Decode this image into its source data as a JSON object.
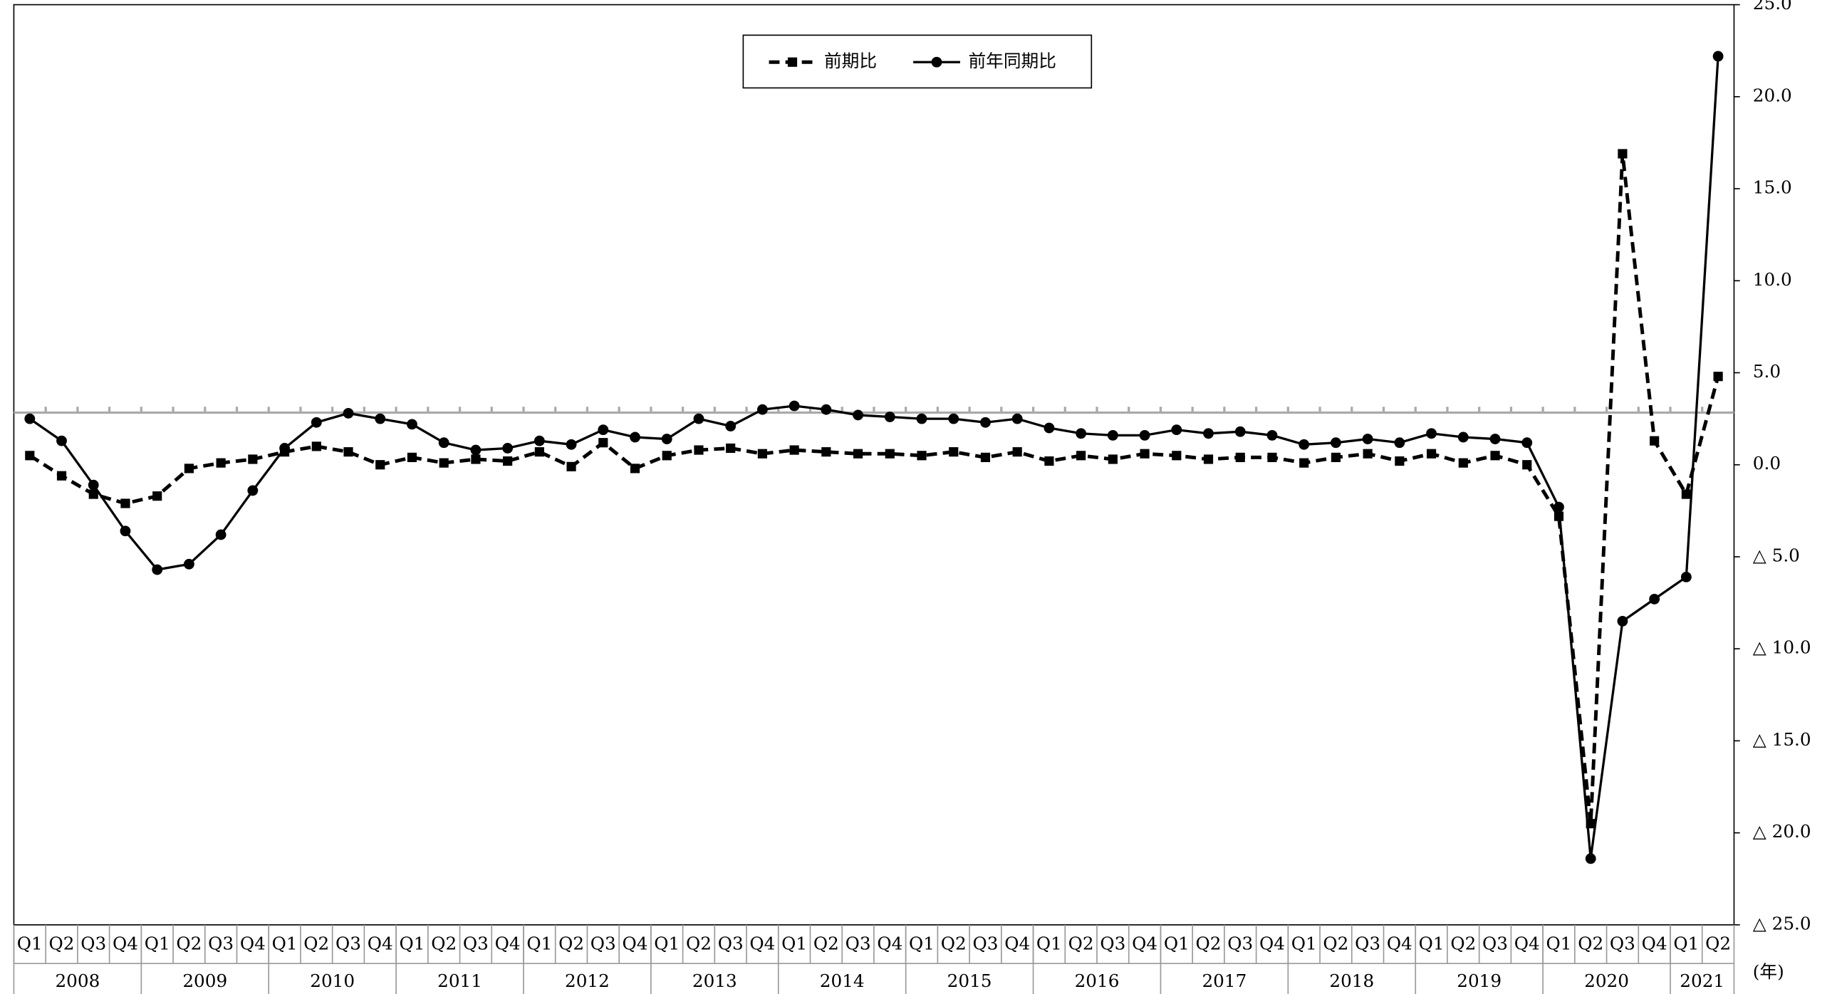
{
  "chart_data": {
    "type": "line",
    "categories": [
      {
        "year": "2008",
        "quarter": "Q1"
      },
      {
        "year": "2008",
        "quarter": "Q2"
      },
      {
        "year": "2008",
        "quarter": "Q3"
      },
      {
        "year": "2008",
        "quarter": "Q4"
      },
      {
        "year": "2009",
        "quarter": "Q1"
      },
      {
        "year": "2009",
        "quarter": "Q2"
      },
      {
        "year": "2009",
        "quarter": "Q3"
      },
      {
        "year": "2009",
        "quarter": "Q4"
      },
      {
        "year": "2010",
        "quarter": "Q1"
      },
      {
        "year": "2010",
        "quarter": "Q2"
      },
      {
        "year": "2010",
        "quarter": "Q3"
      },
      {
        "year": "2010",
        "quarter": "Q4"
      },
      {
        "year": "2011",
        "quarter": "Q1"
      },
      {
        "year": "2011",
        "quarter": "Q2"
      },
      {
        "year": "2011",
        "quarter": "Q3"
      },
      {
        "year": "2011",
        "quarter": "Q4"
      },
      {
        "year": "2012",
        "quarter": "Q1"
      },
      {
        "year": "2012",
        "quarter": "Q2"
      },
      {
        "year": "2012",
        "quarter": "Q3"
      },
      {
        "year": "2012",
        "quarter": "Q4"
      },
      {
        "year": "2013",
        "quarter": "Q1"
      },
      {
        "year": "2013",
        "quarter": "Q2"
      },
      {
        "year": "2013",
        "quarter": "Q3"
      },
      {
        "year": "2013",
        "quarter": "Q4"
      },
      {
        "year": "2014",
        "quarter": "Q1"
      },
      {
        "year": "2014",
        "quarter": "Q2"
      },
      {
        "year": "2014",
        "quarter": "Q3"
      },
      {
        "year": "2014",
        "quarter": "Q4"
      },
      {
        "year": "2015",
        "quarter": "Q1"
      },
      {
        "year": "2015",
        "quarter": "Q2"
      },
      {
        "year": "2015",
        "quarter": "Q3"
      },
      {
        "year": "2015",
        "quarter": "Q4"
      },
      {
        "year": "2016",
        "quarter": "Q1"
      },
      {
        "year": "2016",
        "quarter": "Q2"
      },
      {
        "year": "2016",
        "quarter": "Q3"
      },
      {
        "year": "2016",
        "quarter": "Q4"
      },
      {
        "year": "2017",
        "quarter": "Q1"
      },
      {
        "year": "2017",
        "quarter": "Q2"
      },
      {
        "year": "2017",
        "quarter": "Q3"
      },
      {
        "year": "2017",
        "quarter": "Q4"
      },
      {
        "year": "2018",
        "quarter": "Q1"
      },
      {
        "year": "2018",
        "quarter": "Q2"
      },
      {
        "year": "2018",
        "quarter": "Q3"
      },
      {
        "year": "2018",
        "quarter": "Q4"
      },
      {
        "year": "2019",
        "quarter": "Q1"
      },
      {
        "year": "2019",
        "quarter": "Q2"
      },
      {
        "year": "2019",
        "quarter": "Q3"
      },
      {
        "year": "2019",
        "quarter": "Q4"
      },
      {
        "year": "2020",
        "quarter": "Q1"
      },
      {
        "year": "2020",
        "quarter": "Q2"
      },
      {
        "year": "2020",
        "quarter": "Q3"
      },
      {
        "year": "2020",
        "quarter": "Q4"
      },
      {
        "year": "2021",
        "quarter": "Q1"
      },
      {
        "year": "2021",
        "quarter": "Q2"
      }
    ],
    "x_label": "(年)",
    "series": [
      {
        "name": "前期比",
        "color": "#000000",
        "dash": true,
        "marker": "square",
        "values": [
          0.5,
          -0.6,
          -1.6,
          -2.1,
          -1.7,
          -0.2,
          0.1,
          0.3,
          0.7,
          1.0,
          0.7,
          0.0,
          0.4,
          0.1,
          0.3,
          0.2,
          0.7,
          -0.1,
          1.2,
          -0.2,
          0.5,
          0.8,
          0.9,
          0.6,
          0.8,
          0.7,
          0.6,
          0.6,
          0.5,
          0.7,
          0.4,
          0.7,
          0.2,
          0.5,
          0.3,
          0.6,
          0.5,
          0.3,
          0.4,
          0.4,
          0.1,
          0.4,
          0.6,
          0.2,
          0.6,
          0.1,
          0.5,
          0.0,
          -2.8,
          -19.5,
          16.9,
          1.3,
          -1.6,
          4.8
        ]
      },
      {
        "name": "前年同期比",
        "color": "#000000",
        "dash": false,
        "marker": "circle",
        "values": [
          2.5,
          1.3,
          -1.1,
          -3.6,
          -5.7,
          -5.4,
          -3.8,
          -1.4,
          0.9,
          2.3,
          2.8,
          2.5,
          2.2,
          1.2,
          0.8,
          0.9,
          1.3,
          1.1,
          1.9,
          1.5,
          1.4,
          2.5,
          2.1,
          3.0,
          3.2,
          3.0,
          2.7,
          2.6,
          2.5,
          2.5,
          2.3,
          2.5,
          2.0,
          1.7,
          1.6,
          1.6,
          1.9,
          1.7,
          1.8,
          1.6,
          1.1,
          1.2,
          1.4,
          1.2,
          1.7,
          1.5,
          1.4,
          1.2,
          -2.3,
          -21.4,
          -8.5,
          -7.3,
          -6.1,
          22.2
        ]
      }
    ],
    "ylim": [
      -25,
      25
    ],
    "yticks": [
      {
        "value": 25,
        "label": "25.0"
      },
      {
        "value": 20,
        "label": "20.0"
      },
      {
        "value": 15,
        "label": "15.0"
      },
      {
        "value": 10,
        "label": "10.0"
      },
      {
        "value": 5,
        "label": "5.0"
      },
      {
        "value": 0,
        "label": "0.0"
      },
      {
        "value": -5,
        "label": "△ 5.0"
      },
      {
        "value": -10,
        "label": "△ 10.0"
      },
      {
        "value": -15,
        "label": "△ 15.0"
      },
      {
        "value": -20,
        "label": "△ 20.0"
      },
      {
        "value": -25,
        "label": "△ 25.0"
      }
    ],
    "legend": "top"
  }
}
